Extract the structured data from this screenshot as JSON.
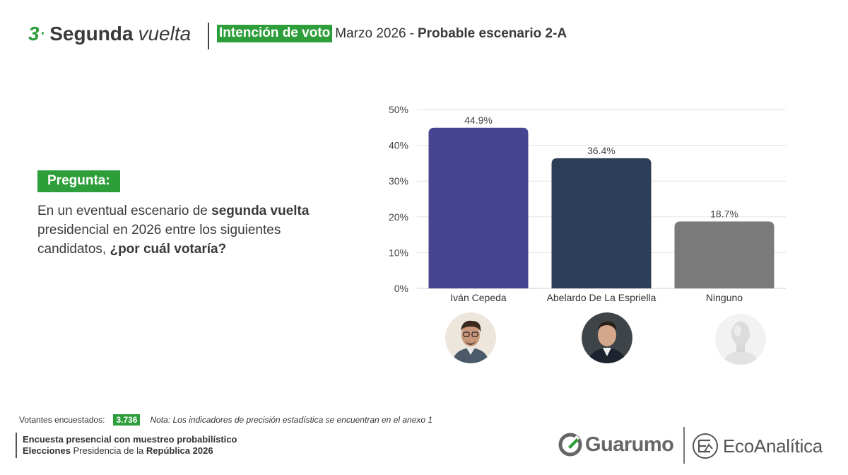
{
  "header": {
    "number": "3",
    "title_bold": "Segunda",
    "title_italic": "vuelta",
    "badge": "Intención de voto",
    "month": "Marzo  2026",
    "dash": "-",
    "scenario": "Probable escenario 2-A"
  },
  "question": {
    "badge": "Pregunta:",
    "part1": "En un eventual escenario de ",
    "bold1": "segunda vuelta",
    "part2": " presidencial en 2026 entre los siguientes candidatos, ",
    "bold2": "¿por cuál votaría?"
  },
  "chart_data": {
    "type": "bar",
    "categories": [
      "Iván Cepeda",
      "Abelardo De La Espriella",
      "Ninguno"
    ],
    "values": [
      44.9,
      36.4,
      18.7
    ],
    "value_labels": [
      "44.9%",
      "36.4%",
      "18.7%"
    ],
    "colors": [
      "#454590",
      "#2c3e57",
      "#7a7a7a"
    ],
    "ylim": [
      0,
      50
    ],
    "yticks": [
      "0%",
      "10%",
      "20%",
      "30%",
      "40%",
      "50%"
    ],
    "grid": true,
    "title": "",
    "xlabel": "",
    "ylabel": ""
  },
  "candidates": [
    {
      "name": "Iván Cepeda",
      "icon": "candidate-photo-icon"
    },
    {
      "name": "Abelardo De La Espriella",
      "icon": "candidate-photo-icon"
    },
    {
      "name": "Ninguno",
      "icon": "mannequin-icon"
    }
  ],
  "footer": {
    "voters_label": "Votantes encuestados:",
    "voters_count": "3.736",
    "note": "Nota: Los indicadores de precisión estadística se encuentran en el anexo 1",
    "line1": "Encuesta presencial con muestreo probabilístico",
    "line2_bold1": "Elecciones",
    "line2_mid": " Presidencia de la ",
    "line2_bold2": "República 2026"
  },
  "logos": {
    "guarumo": "Guarumo",
    "ecoanalitica": "EcoAnalítica"
  }
}
